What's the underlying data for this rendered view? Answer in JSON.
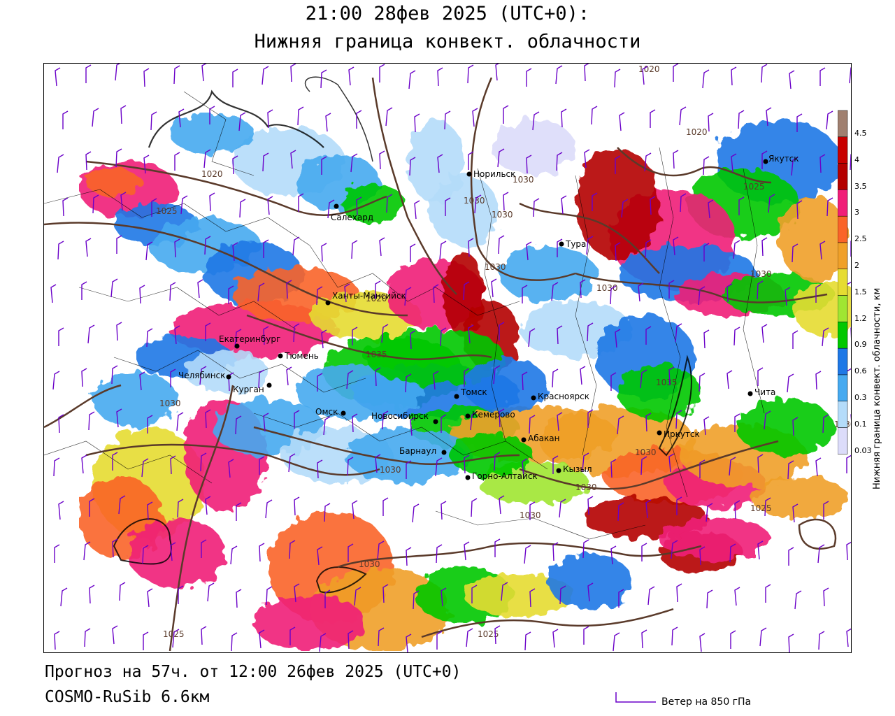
{
  "header": {
    "title_line1": "21:00 28фев 2025 (UTC+0):",
    "title_line2": "Нижняя граница конвект. облачности"
  },
  "footer": {
    "forecast": "Прогноз на 57ч. от 12:00 26фев 2025 (UTC+0)",
    "model": "COSMO-RuSib 6.6км",
    "wind_legend": "Ветер на 850 гПа"
  },
  "colorbar": {
    "title": "Нижняя граница конвект. облачности, км",
    "levels": [
      "0.03",
      "0.1",
      "0.3",
      "0.6",
      "0.9",
      "1.2",
      "1.5",
      "2",
      "2.5",
      "3",
      "3.5",
      "4",
      "4.5"
    ],
    "colors": [
      "#dcdcfa",
      "#b4dcfa",
      "#46aaf0",
      "#1e78e6",
      "#00c800",
      "#a0e632",
      "#e6dc32",
      "#f0a028",
      "#fa6428",
      "#f01e78",
      "#b40000",
      "#c80000",
      "#a08070"
    ]
  },
  "cities": [
    {
      "name": "Салехард"
    },
    {
      "name": "Норильск"
    },
    {
      "name": "Тура"
    },
    {
      "name": "Якутск"
    },
    {
      "name": "Ханты-Мансийск"
    },
    {
      "name": "Екатеринбург"
    },
    {
      "name": "Тюмень"
    },
    {
      "name": "Челябинск"
    },
    {
      "name": "Курган"
    },
    {
      "name": "Омск"
    },
    {
      "name": "Новосибирск"
    },
    {
      "name": "Томск"
    },
    {
      "name": "Кемерово"
    },
    {
      "name": "Красноярск"
    },
    {
      "name": "Барнаул"
    },
    {
      "name": "Абакан"
    },
    {
      "name": "Горно-Алтайск"
    },
    {
      "name": "Кызыл"
    },
    {
      "name": "Иркутск"
    },
    {
      "name": "Чита"
    }
  ],
  "isobars": [
    "1020",
    "1025",
    "1030",
    "1035"
  ],
  "colors": {
    "isobar": "#5a3a2a",
    "wind": "#6a00c8",
    "border": "#000000"
  }
}
